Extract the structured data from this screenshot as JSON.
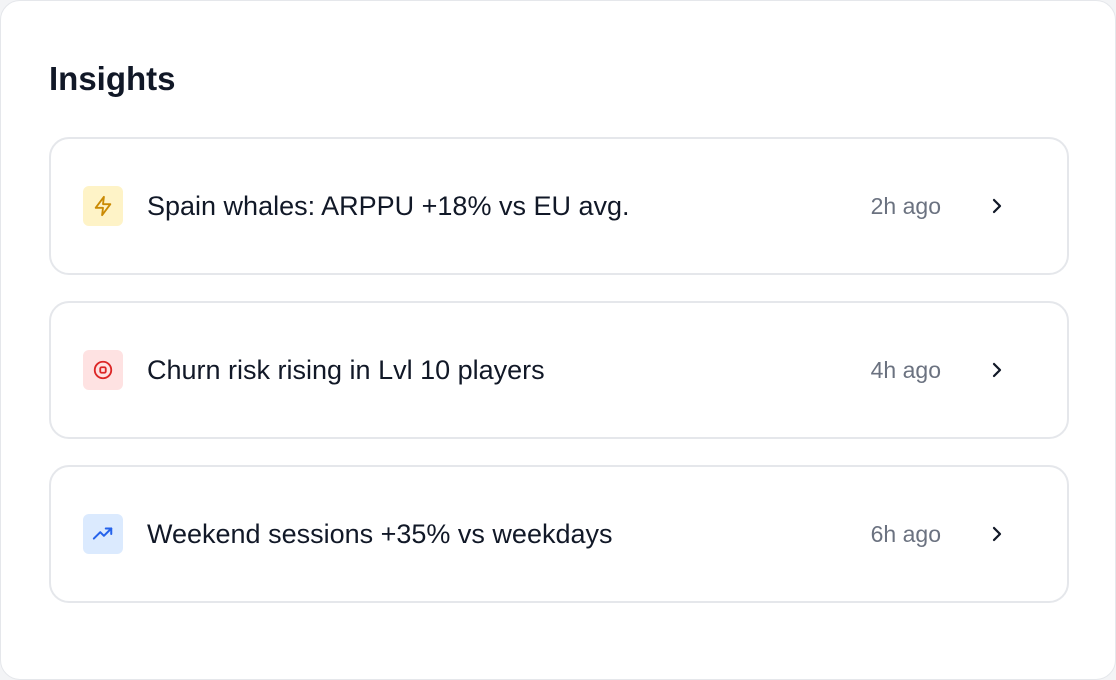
{
  "panel": {
    "title": "Insights"
  },
  "insights": [
    {
      "icon": "lightning-icon",
      "color": "#ca8a04",
      "bg": "#fef3c7",
      "text": "Spain whales: ARPPU +18% vs EU avg.",
      "time": "2h ago"
    },
    {
      "icon": "target-icon",
      "color": "#dc2626",
      "bg": "#fee2e2",
      "text": "Churn risk rising in Lvl 10 players",
      "time": "4h ago"
    },
    {
      "icon": "trending-up-icon",
      "color": "#2563eb",
      "bg": "#dbeafe",
      "text": "Weekend sessions +35% vs weekdays",
      "time": "6h ago"
    }
  ]
}
